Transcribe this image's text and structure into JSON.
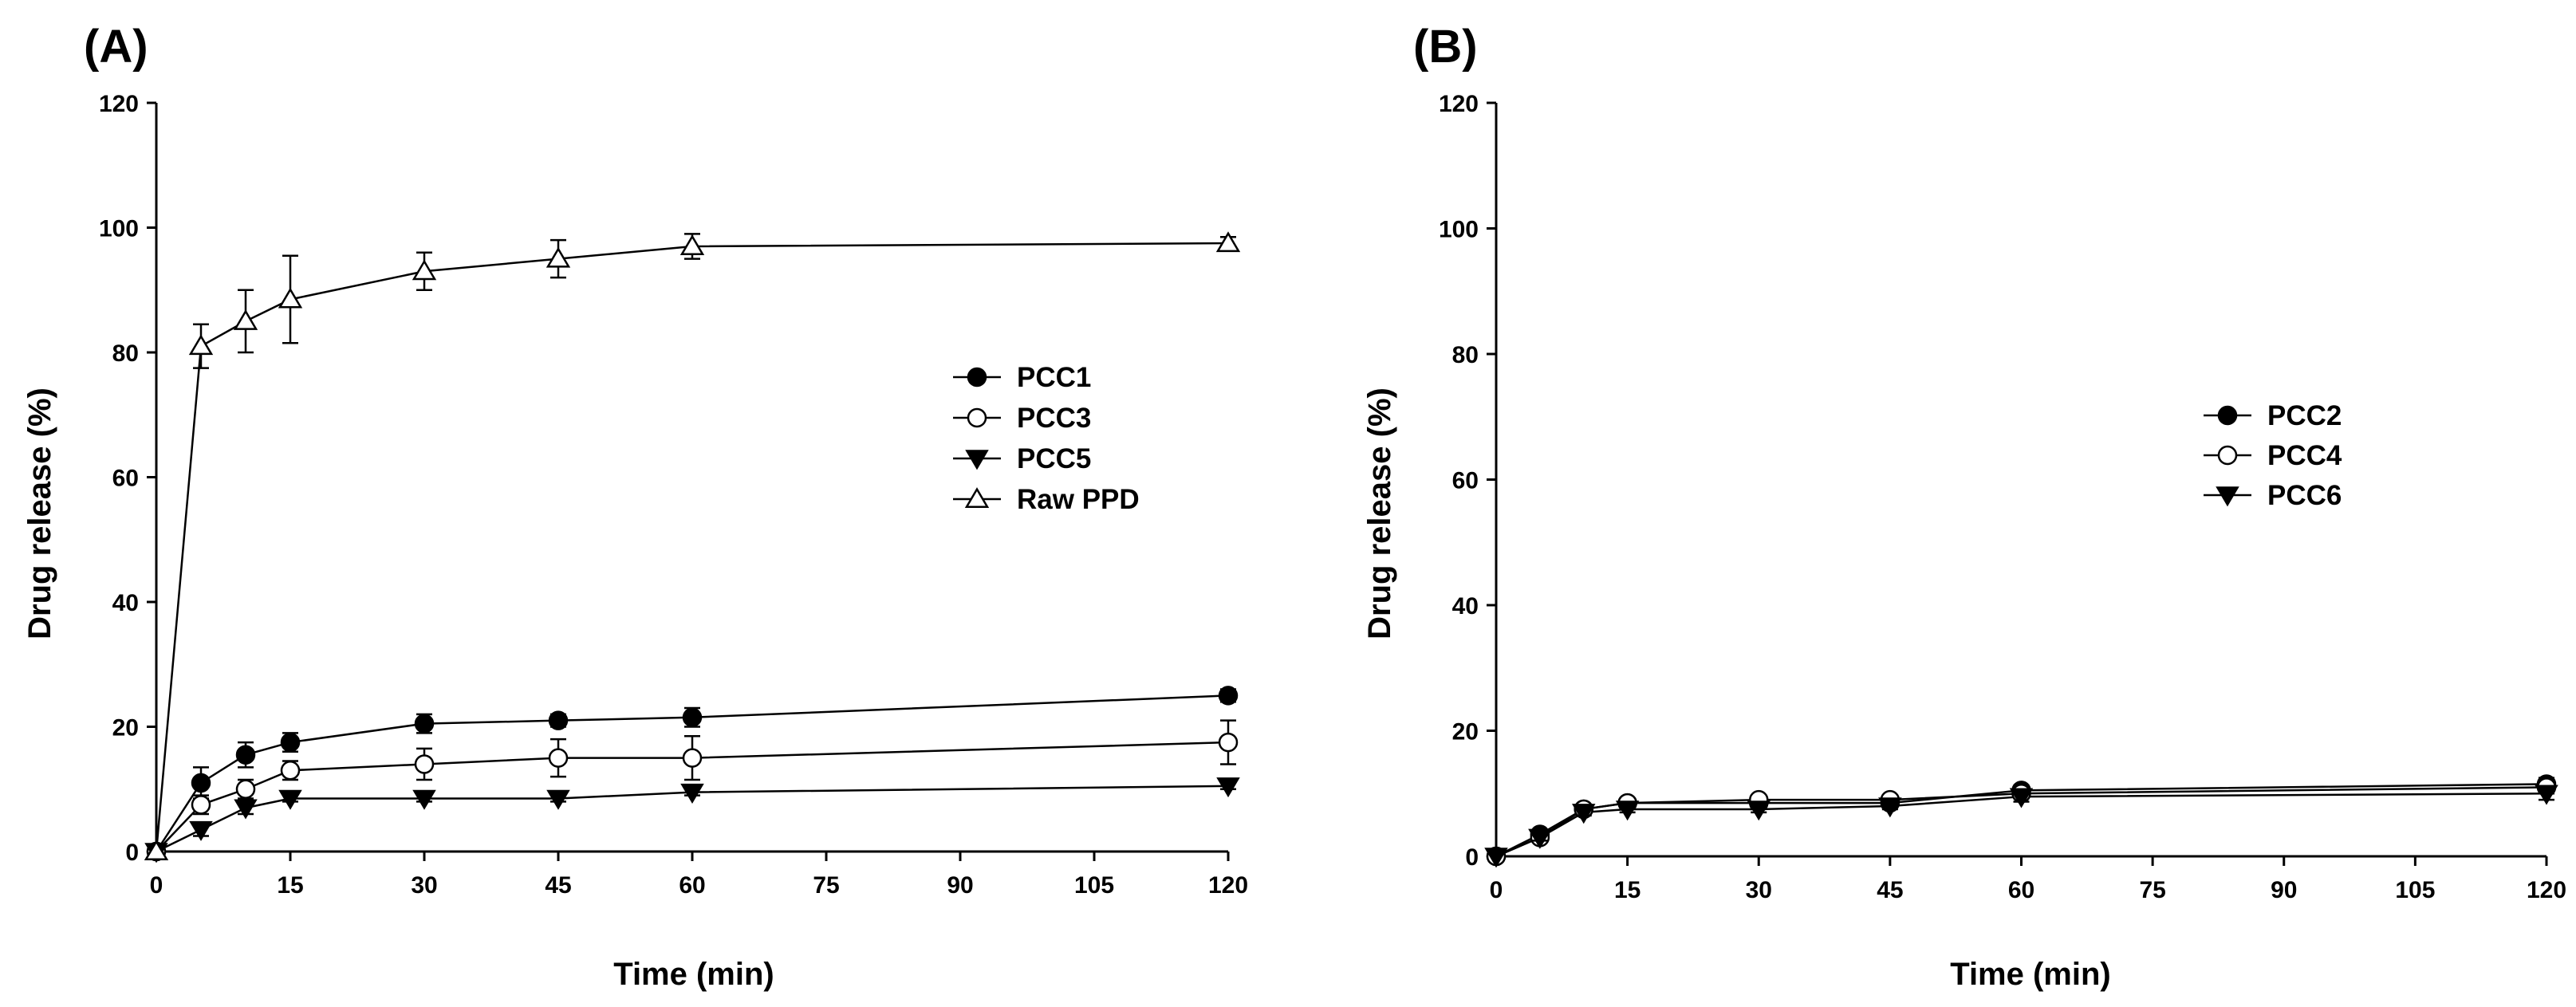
{
  "chart_data": [
    {
      "type": "line",
      "panel_label": "(A)",
      "xlabel": "Time (min)",
      "ylabel": "Drug release (%)",
      "xlim": [
        0,
        120
      ],
      "ylim": [
        0,
        120
      ],
      "x_ticks": [
        0,
        15,
        30,
        45,
        60,
        75,
        90,
        105,
        120
      ],
      "y_ticks": [
        0,
        20,
        40,
        60,
        80,
        100,
        120
      ],
      "legend_position": "center-right",
      "x": [
        0,
        5,
        10,
        15,
        30,
        45,
        60,
        120
      ],
      "series": [
        {
          "name": "PCC1",
          "marker": "filled-circle",
          "values": [
            0,
            11,
            15.5,
            17.5,
            20.5,
            21,
            21.5,
            25
          ],
          "errors": [
            0,
            2.5,
            2,
            1.5,
            1.5,
            1,
            1.5,
            1
          ]
        },
        {
          "name": "PCC3",
          "marker": "open-circle",
          "values": [
            0,
            7.5,
            10,
            13,
            14,
            15,
            15,
            17.5
          ],
          "errors": [
            0,
            1.5,
            1.5,
            1.5,
            2.5,
            3,
            3.5,
            3.5
          ]
        },
        {
          "name": "PCC5",
          "marker": "filled-triangle-down",
          "values": [
            0,
            3.5,
            7,
            8.5,
            8.5,
            8.5,
            9.5,
            10.5
          ],
          "errors": [
            0,
            1,
            1,
            0.5,
            0.5,
            0.5,
            0.5,
            0.5
          ]
        },
        {
          "name": "Raw PPD",
          "marker": "open-triangle-up",
          "values": [
            0,
            81,
            85,
            88.5,
            93,
            95,
            97,
            97.5
          ],
          "errors": [
            0,
            3.5,
            5,
            7,
            3,
            3,
            2,
            1
          ]
        }
      ]
    },
    {
      "type": "line",
      "panel_label": "(B)",
      "xlabel": "Time (min)",
      "ylabel": "Drug release (%)",
      "xlim": [
        0,
        120
      ],
      "ylim": [
        0,
        120
      ],
      "x_ticks": [
        0,
        15,
        30,
        45,
        60,
        75,
        90,
        105,
        120
      ],
      "y_ticks": [
        0,
        20,
        40,
        60,
        80,
        100,
        120
      ],
      "legend_position": "center-right",
      "x": [
        0,
        5,
        10,
        15,
        30,
        45,
        60,
        120
      ],
      "series": [
        {
          "name": "PCC2",
          "marker": "filled-circle",
          "values": [
            0,
            3.5,
            7.5,
            8.5,
            8.5,
            8.5,
            10.5,
            11.5
          ],
          "errors": [
            0,
            0.5,
            0.5,
            0.5,
            0.5,
            0.5,
            0.8,
            1
          ]
        },
        {
          "name": "PCC4",
          "marker": "open-circle",
          "values": [
            0,
            3,
            7.5,
            8.5,
            9,
            9,
            10,
            11
          ],
          "errors": [
            0,
            0.5,
            0.5,
            0.5,
            0.5,
            0.5,
            0.8,
            1
          ]
        },
        {
          "name": "PCC6",
          "marker": "filled-triangle-down",
          "values": [
            0,
            3,
            7,
            7.5,
            7.5,
            8,
            9.5,
            10
          ],
          "errors": [
            0,
            0.5,
            0.5,
            0.5,
            0.5,
            0.5,
            0.8,
            1
          ]
        }
      ]
    }
  ]
}
